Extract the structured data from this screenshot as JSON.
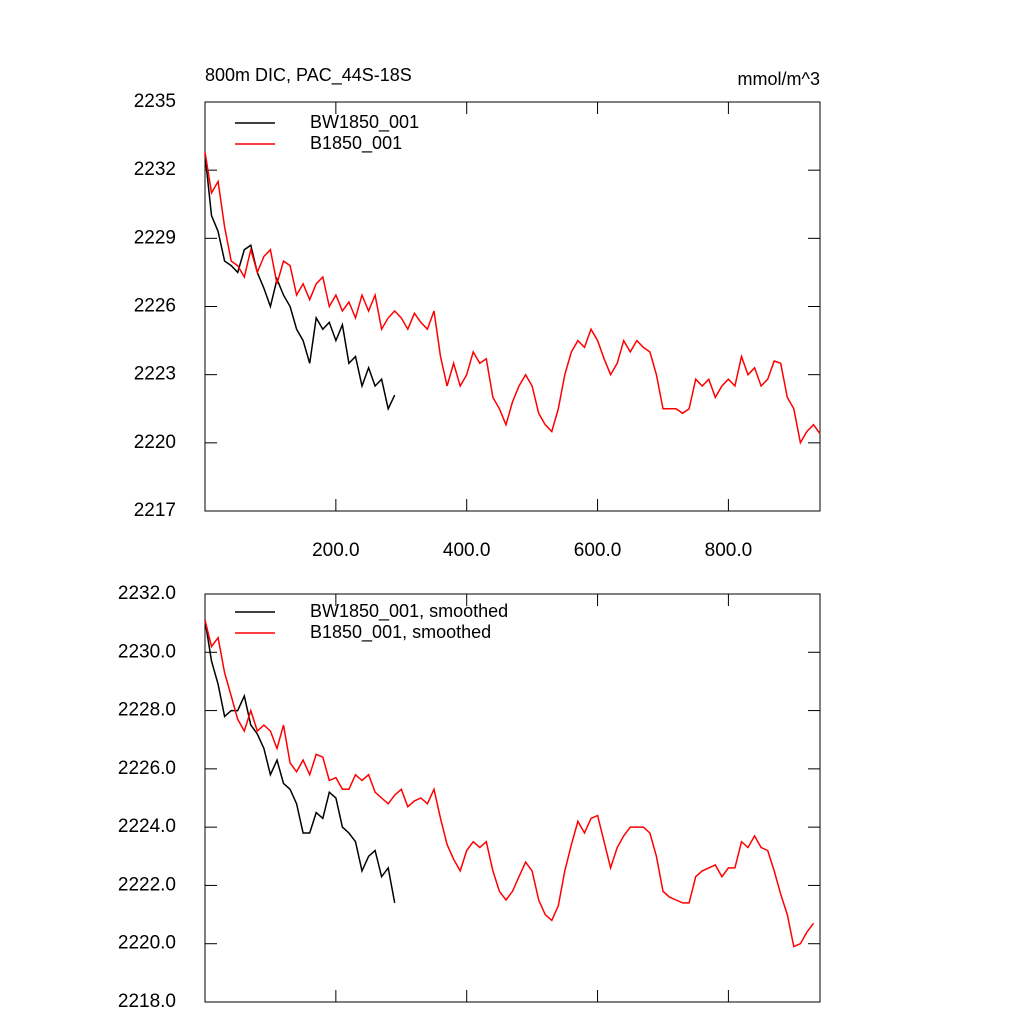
{
  "chart_data": [
    {
      "type": "line",
      "title": "800m DIC, PAC_44S-18S",
      "units": "mmol/m^3",
      "xlim": [
        0,
        940
      ],
      "ylim": [
        2217,
        2235
      ],
      "xticks": [
        {
          "value": 200,
          "label": "200.0"
        },
        {
          "value": 400,
          "label": "400.0"
        },
        {
          "value": 600,
          "label": "600.0"
        },
        {
          "value": 800,
          "label": "800.0"
        }
      ],
      "yticks": [
        2217,
        2220,
        2223,
        2226,
        2229,
        2232,
        2235
      ],
      "series": [
        {
          "name": "BW1850_001",
          "color": "#000000",
          "x": [
            0,
            10,
            20,
            30,
            40,
            50,
            60,
            70,
            80,
            90,
            100,
            110,
            120,
            130,
            140,
            150,
            160,
            170,
            180,
            190,
            200,
            210,
            220,
            230,
            240,
            250,
            260,
            270,
            280,
            290
          ],
          "values": [
            2232.7,
            2230,
            2229.3,
            2228,
            2227.8,
            2227.5,
            2228.5,
            2228.7,
            2227.5,
            2226.8,
            2226,
            2227.2,
            2226.5,
            2226,
            2225,
            2224.5,
            2223.5,
            2225.5,
            2225,
            2225.3,
            2224.5,
            2225.2,
            2223.5,
            2223.8,
            2222.5,
            2223.3,
            2222.5,
            2222.8,
            2221.5,
            2222.1
          ]
        },
        {
          "name": "B1850_001",
          "color": "#ff0000",
          "x": [
            0,
            10,
            20,
            30,
            40,
            50,
            60,
            70,
            80,
            90,
            100,
            110,
            120,
            130,
            140,
            150,
            160,
            170,
            180,
            190,
            200,
            210,
            220,
            230,
            240,
            250,
            260,
            270,
            280,
            290,
            300,
            310,
            320,
            330,
            340,
            350,
            360,
            370,
            380,
            390,
            400,
            410,
            420,
            430,
            440,
            450,
            460,
            470,
            480,
            490,
            500,
            510,
            520,
            530,
            540,
            550,
            560,
            570,
            580,
            590,
            600,
            610,
            620,
            630,
            640,
            650,
            660,
            670,
            680,
            690,
            700,
            710,
            720,
            730,
            740,
            750,
            760,
            770,
            780,
            790,
            800,
            810,
            820,
            830,
            840,
            850,
            860,
            870,
            880,
            890,
            900,
            910,
            920,
            930,
            940
          ],
          "values": [
            2232.8,
            2231,
            2231.5,
            2229.5,
            2228,
            2227.8,
            2227.3,
            2228.5,
            2227.5,
            2228.2,
            2228.5,
            2227,
            2228,
            2227.8,
            2226.5,
            2227,
            2226.3,
            2227,
            2227.3,
            2226,
            2226.5,
            2225.8,
            2226.2,
            2225.5,
            2226.5,
            2225.8,
            2226.5,
            2225,
            2225.5,
            2225.8,
            2225.5,
            2225,
            2225.7,
            2225.3,
            2225,
            2225.8,
            2223.8,
            2222.5,
            2223.5,
            2222.5,
            2223,
            2224,
            2223.5,
            2223.7,
            2222,
            2221.5,
            2220.8,
            2221.8,
            2222.5,
            2223,
            2222.5,
            2221.3,
            2220.8,
            2220.5,
            2221.5,
            2223,
            2224,
            2224.5,
            2224.2,
            2225,
            2224.5,
            2223.7,
            2223,
            2223.5,
            2224.5,
            2224,
            2224.5,
            2224.2,
            2224,
            2223,
            2221.5,
            2221.5,
            2221.5,
            2221.3,
            2221.5,
            2222.8,
            2222.5,
            2222.8,
            2222,
            2222.5,
            2222.8,
            2222.5,
            2223.8,
            2223,
            2223.3,
            2222.5,
            2222.8,
            2223.6,
            2223.5,
            2222,
            2221.5,
            2220,
            2220.5,
            2220.8,
            2220.4
          ]
        }
      ]
    },
    {
      "type": "line",
      "xlim": [
        0,
        940
      ],
      "ylim": [
        2218,
        2232
      ],
      "xticks": [
        200,
        400,
        600,
        800
      ],
      "yticks": [
        {
          "value": 2218,
          "label": "2218.0"
        },
        {
          "value": 2220,
          "label": "2220.0"
        },
        {
          "value": 2222,
          "label": "2222.0"
        },
        {
          "value": 2224,
          "label": "2224.0"
        },
        {
          "value": 2226,
          "label": "2226.0"
        },
        {
          "value": 2228,
          "label": "2228.0"
        },
        {
          "value": 2230,
          "label": "2230.0"
        },
        {
          "value": 2232,
          "label": "2232.0"
        }
      ],
      "series": [
        {
          "name": "BW1850_001, smoothed",
          "color": "#000000",
          "x": [
            0,
            10,
            20,
            30,
            40,
            50,
            60,
            70,
            80,
            90,
            100,
            110,
            120,
            130,
            140,
            150,
            160,
            170,
            180,
            190,
            200,
            210,
            220,
            230,
            240,
            250,
            260,
            270,
            280,
            290
          ],
          "values": [
            2231.1,
            2229.7,
            2228.9,
            2227.8,
            2228,
            2228,
            2228.5,
            2227.5,
            2227.2,
            2226.7,
            2225.8,
            2226.3,
            2225.5,
            2225.3,
            2224.8,
            2223.8,
            2223.8,
            2224.5,
            2224.3,
            2225.2,
            2225,
            2224,
            2223.8,
            2223.5,
            2222.5,
            2223,
            2223.2,
            2222.3,
            2222.6,
            2221.4
          ]
        },
        {
          "name": "B1850_001, smoothed",
          "color": "#ff0000",
          "x": [
            0,
            10,
            20,
            30,
            40,
            50,
            60,
            70,
            80,
            90,
            100,
            110,
            120,
            130,
            140,
            150,
            160,
            170,
            180,
            190,
            200,
            210,
            220,
            230,
            240,
            250,
            260,
            270,
            280,
            290,
            300,
            310,
            320,
            330,
            340,
            350,
            360,
            370,
            380,
            390,
            400,
            410,
            420,
            430,
            440,
            450,
            460,
            470,
            480,
            490,
            500,
            510,
            520,
            530,
            540,
            550,
            560,
            570,
            580,
            590,
            600,
            610,
            620,
            630,
            640,
            650,
            660,
            670,
            680,
            690,
            700,
            710,
            720,
            730,
            740,
            750,
            760,
            770,
            780,
            790,
            800,
            810,
            820,
            830,
            840,
            850,
            860,
            870,
            880,
            890,
            900,
            910,
            920,
            930
          ],
          "values": [
            2231.1,
            2230.2,
            2230.5,
            2229.3,
            2228.5,
            2227.7,
            2227.3,
            2228,
            2227.3,
            2227.5,
            2227.3,
            2226.7,
            2227.5,
            2226.2,
            2225.9,
            2226.3,
            2225.8,
            2226.5,
            2226.4,
            2225.6,
            2225.7,
            2225.3,
            2225.3,
            2225.8,
            2225.6,
            2225.8,
            2225.2,
            2225,
            2224.8,
            2225.1,
            2225.3,
            2224.7,
            2224.9,
            2225,
            2224.8,
            2225.3,
            2224.3,
            2223.4,
            2222.9,
            2222.5,
            2223.2,
            2223.5,
            2223.3,
            2223.5,
            2222.5,
            2221.8,
            2221.5,
            2221.8,
            2222.3,
            2222.8,
            2222.5,
            2221.5,
            2221,
            2220.8,
            2221.3,
            2222.5,
            2223.4,
            2224.2,
            2223.8,
            2224.3,
            2224.4,
            2223.5,
            2222.6,
            2223.3,
            2223.7,
            2224,
            2224,
            2224,
            2223.8,
            2223,
            2221.8,
            2221.6,
            2221.5,
            2221.4,
            2221.4,
            2222.3,
            2222.5,
            2222.6,
            2222.7,
            2222.3,
            2222.6,
            2222.6,
            2223.5,
            2223.3,
            2223.7,
            2223.3,
            2223.2,
            2222.5,
            2221.7,
            2221,
            2219.9,
            2220,
            2220.4,
            2220.7
          ]
        }
      ]
    }
  ]
}
